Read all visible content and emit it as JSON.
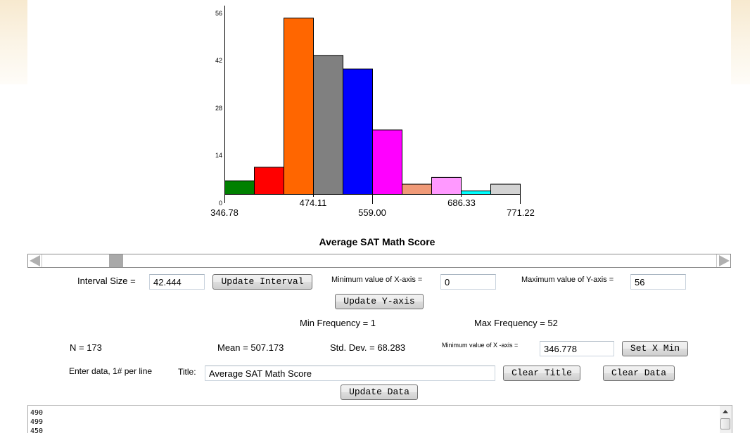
{
  "chart_data": {
    "type": "bar",
    "title": "Average SAT Math Score",
    "xlabel": "",
    "ylabel": "",
    "bin_edges": [
      346.78,
      389.22,
      431.67,
      474.11,
      516.56,
      559.0,
      601.44,
      643.89,
      686.33,
      728.78,
      771.22
    ],
    "categories": [
      "346.78-389.22",
      "389.22-431.67",
      "431.67-474.11",
      "474.11-516.56",
      "516.56-559.00",
      "559.00-601.44",
      "601.44-643.89",
      "643.89-686.33",
      "686.33-728.78",
      "728.78-771.22"
    ],
    "values": [
      4,
      8,
      52,
      41,
      37,
      19,
      3,
      5,
      1,
      3
    ],
    "colors": [
      "#008000",
      "#ff0000",
      "#ff6600",
      "#808080",
      "#0000ff",
      "#ff00ff",
      "#f09a78",
      "#ff99ff",
      "#00ffff",
      "#d3d3d3"
    ],
    "ylim": [
      0,
      56
    ],
    "y_ticks": [
      0,
      14,
      28,
      42,
      56
    ],
    "x_tick_labels_top": [
      "474.11",
      "686.33"
    ],
    "x_tick_labels_bottom": [
      "346.78",
      "559.00",
      "771.22"
    ],
    "grid": false,
    "legend": null
  },
  "chart": {
    "title": "Average SAT Math Score",
    "y_ticks": [
      "0",
      "14",
      "28",
      "42",
      "56"
    ],
    "x_ticks": {
      "t0": "346.78",
      "t1": "474.11",
      "t2": "559.00",
      "t3": "686.33",
      "t4": "771.22"
    }
  },
  "controls": {
    "interval_label": "Interval Size =",
    "interval_value": "42.444",
    "update_interval_button": "Update Interval",
    "min_x_label": "Minimum value of X-axis =",
    "min_x_value": "0",
    "max_y_label": "Maximum value of Y-axis =",
    "max_y_value": "56",
    "update_y_button": "Update Y-axis",
    "set_x_min_label": "Minimum value of X -axis =",
    "set_x_min_value": "346.778",
    "set_x_min_button": "Set X Min",
    "title_label": "Title:",
    "title_value": "Average SAT Math Score",
    "clear_title_button": "Clear Title",
    "clear_data_button": "Clear Data",
    "update_data_button": "Update Data",
    "enter_data_label": "Enter data, 1# per line"
  },
  "stats": {
    "min_frequency": "Min Frequency = 1",
    "max_frequency": "Max Frequency = 52",
    "n": "N = 173",
    "mean": "Mean = 507.173",
    "std_dev": "Std. Dev. = 68.283"
  },
  "data_entry": {
    "lines": [
      "490",
      "499",
      "450"
    ]
  }
}
